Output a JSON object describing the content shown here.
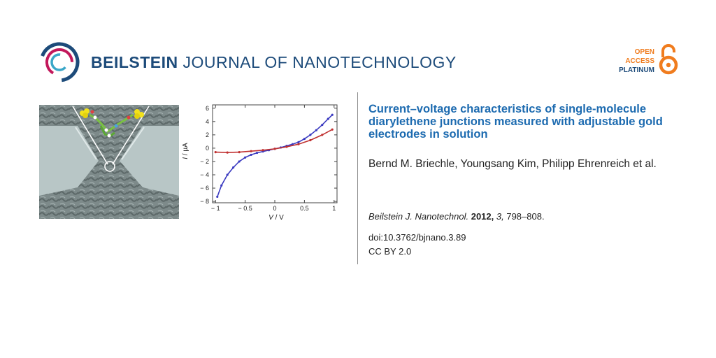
{
  "header": {
    "journal_bold": "BEILSTEIN",
    "journal_rest": " JOURNAL OF NANOTECHNOLOGY",
    "open_access": [
      "OPEN",
      "ACCESS",
      "PLATINUM"
    ],
    "colors": {
      "navy": "#1d4b7a",
      "orange": "#f07c1e",
      "title_blue": "#1d6bb0"
    }
  },
  "article": {
    "title": "Current–voltage characteristics of single-molecule diarylethene junctions measured with adjustable gold electrodes in solution",
    "authors": "Bernd M. Briechle, Youngsang Kim, Philipp Ehrenreich et al.",
    "citation": {
      "journal": "Beilstein J. Nanotechnol.",
      "year": "2012,",
      "volume": "3,",
      "pages": " 798–808."
    },
    "doi": "doi:10.3762/bjnano.3.89",
    "license": "CC BY 2.0"
  },
  "chart_data": {
    "type": "line",
    "xlabel": {
      "var": "V",
      "unit": " / V"
    },
    "ylabel": {
      "var": "I",
      "unit": " / µA"
    },
    "xlim": [
      -1.05,
      1.05
    ],
    "ylim": [
      -8.2,
      6.5
    ],
    "xticks": [
      -1,
      -0.5,
      0,
      0.5,
      1
    ],
    "xtick_labels": [
      "− 1",
      "− 0.5",
      "0",
      "0.5",
      "1"
    ],
    "yticks": [
      6,
      4,
      2,
      0,
      -2,
      -4,
      -6,
      -8
    ],
    "ytick_labels": [
      "6",
      "4",
      "2",
      "0",
      "− 2",
      "− 4",
      "− 6",
      "− 8"
    ],
    "series": [
      {
        "color": "#3a3ac0",
        "x": [
          -0.97,
          -0.9,
          -0.8,
          -0.7,
          -0.6,
          -0.5,
          -0.4,
          -0.3,
          -0.2,
          -0.1,
          0,
          0.1,
          0.2,
          0.3,
          0.4,
          0.5,
          0.6,
          0.7,
          0.8,
          0.9,
          0.97
        ],
        "y": [
          -7.3,
          -5.6,
          -4.0,
          -2.9,
          -2.0,
          -1.4,
          -1.0,
          -0.7,
          -0.5,
          -0.3,
          -0.1,
          0.1,
          0.35,
          0.6,
          0.9,
          1.4,
          2.0,
          2.7,
          3.5,
          4.4,
          5.0
        ]
      },
      {
        "color": "#c03030",
        "x": [
          -1.0,
          -0.8,
          -0.6,
          -0.4,
          -0.2,
          0,
          0.2,
          0.4,
          0.6,
          0.8,
          0.97
        ],
        "y": [
          -0.6,
          -0.65,
          -0.6,
          -0.45,
          -0.3,
          -0.1,
          0.2,
          0.6,
          1.2,
          2.0,
          2.8
        ]
      }
    ]
  }
}
